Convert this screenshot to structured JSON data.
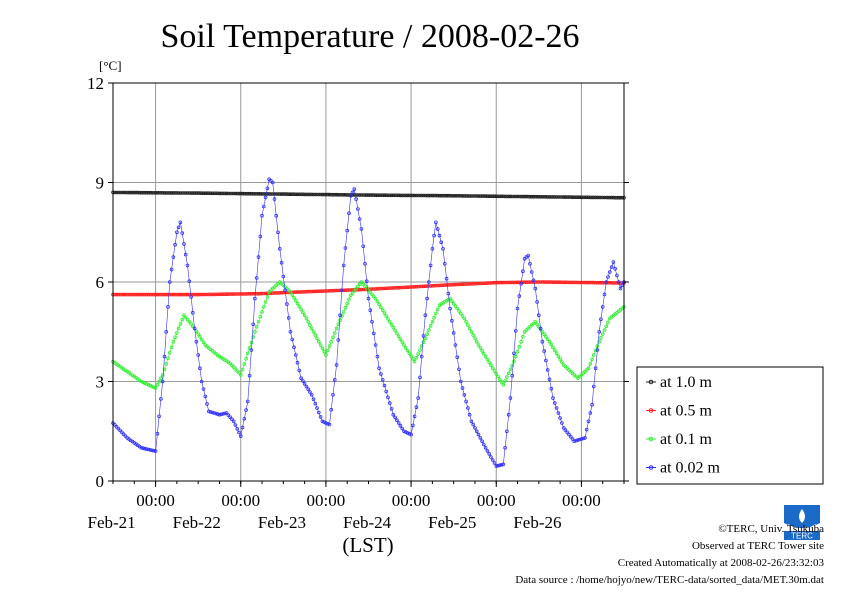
{
  "chart_data": {
    "type": "line",
    "title": "Soil Temperature / 2008-02-26",
    "y_unit": "[°C]",
    "xlabel": "(LST)",
    "ylim": [
      0,
      12
    ],
    "y_ticks": [
      "0",
      "3",
      "6",
      "9",
      "12"
    ],
    "xlim": [
      "2008-02-20T12:00",
      "2008-02-26T12:00"
    ],
    "x_ticks": [
      {
        "x": "2008-02-21T00:00",
        "time": "00:00",
        "date": "Feb-21"
      },
      {
        "x": "2008-02-22T00:00",
        "time": "00:00",
        "date": "Feb-22"
      },
      {
        "x": "2008-02-23T00:00",
        "time": "00:00",
        "date": "Feb-23"
      },
      {
        "x": "2008-02-24T00:00",
        "time": "00:00",
        "date": "Feb-24"
      },
      {
        "x": "2008-02-25T00:00",
        "time": "00:00",
        "date": "Feb-25"
      },
      {
        "x": "2008-02-26T00:00",
        "time": "00:00",
        "date": "Feb-26"
      }
    ],
    "grid": true,
    "legend_position": "right",
    "series": [
      {
        "name": "at 1.0 m",
        "color": "#202020",
        "points": [
          [
            "2008-02-20T12:00",
            8.7
          ],
          [
            "2008-02-21T12:00",
            8.68
          ],
          [
            "2008-02-22T12:00",
            8.65
          ],
          [
            "2008-02-23T12:00",
            8.62
          ],
          [
            "2008-02-24T12:00",
            8.6
          ],
          [
            "2008-02-25T12:00",
            8.57
          ],
          [
            "2008-02-26T12:00",
            8.54
          ]
        ]
      },
      {
        "name": "at 0.5 m",
        "color": "#ff2020",
        "points": [
          [
            "2008-02-20T12:00",
            5.62
          ],
          [
            "2008-02-21T12:00",
            5.62
          ],
          [
            "2008-02-22T06:00",
            5.65
          ],
          [
            "2008-02-22T12:00",
            5.68
          ],
          [
            "2008-02-23T12:00",
            5.78
          ],
          [
            "2008-02-24T12:00",
            5.92
          ],
          [
            "2008-02-25T00:00",
            5.98
          ],
          [
            "2008-02-25T12:00",
            6.0
          ],
          [
            "2008-02-26T12:00",
            5.97
          ]
        ]
      },
      {
        "name": "at 0.1 m",
        "color": "#30ee30",
        "points": [
          [
            "2008-02-20T12:00",
            3.6
          ],
          [
            "2008-02-20T16:00",
            3.3
          ],
          [
            "2008-02-20T20:00",
            3.0
          ],
          [
            "2008-02-21T00:00",
            2.8
          ],
          [
            "2008-02-21T02:00",
            3.2
          ],
          [
            "2008-02-21T05:00",
            4.2
          ],
          [
            "2008-02-21T08:00",
            5.0
          ],
          [
            "2008-02-21T11:00",
            4.6
          ],
          [
            "2008-02-21T14:00",
            4.1
          ],
          [
            "2008-02-21T18:00",
            3.75
          ],
          [
            "2008-02-21T21:00",
            3.55
          ],
          [
            "2008-02-22T00:00",
            3.2
          ],
          [
            "2008-02-22T04:00",
            4.5
          ],
          [
            "2008-02-22T08:00",
            5.7
          ],
          [
            "2008-02-22T11:00",
            6.0
          ],
          [
            "2008-02-22T14:00",
            5.7
          ],
          [
            "2008-02-22T18:00",
            5.0
          ],
          [
            "2008-02-22T21:00",
            4.4
          ],
          [
            "2008-02-23T00:00",
            3.8
          ],
          [
            "2008-02-23T03:00",
            4.6
          ],
          [
            "2008-02-23T07:00",
            5.6
          ],
          [
            "2008-02-23T10:00",
            6.0
          ],
          [
            "2008-02-23T14:00",
            5.5
          ],
          [
            "2008-02-23T18:00",
            4.8
          ],
          [
            "2008-02-23T22:00",
            4.1
          ],
          [
            "2008-02-24T01:00",
            3.6
          ],
          [
            "2008-02-24T04:00",
            4.3
          ],
          [
            "2008-02-24T08:00",
            5.3
          ],
          [
            "2008-02-24T11:00",
            5.5
          ],
          [
            "2008-02-24T15:00",
            4.9
          ],
          [
            "2008-02-24T19:00",
            4.1
          ],
          [
            "2008-02-24T23:00",
            3.4
          ],
          [
            "2008-02-25T02:00",
            2.9
          ],
          [
            "2008-02-25T05:00",
            3.6
          ],
          [
            "2008-02-25T08:00",
            4.5
          ],
          [
            "2008-02-25T11:00",
            4.8
          ],
          [
            "2008-02-25T15:00",
            4.2
          ],
          [
            "2008-02-25T19:00",
            3.5
          ],
          [
            "2008-02-25T23:00",
            3.1
          ],
          [
            "2008-02-26T02:00",
            3.4
          ],
          [
            "2008-02-26T05:00",
            4.2
          ],
          [
            "2008-02-26T08:00",
            4.9
          ],
          [
            "2008-02-26T12:00",
            5.25
          ]
        ]
      },
      {
        "name": "at 0.02 m",
        "color": "#3030ff",
        "points": [
          [
            "2008-02-20T12:00",
            1.75
          ],
          [
            "2008-02-20T16:00",
            1.3
          ],
          [
            "2008-02-20T20:00",
            1.0
          ],
          [
            "2008-02-21T00:00",
            0.9
          ],
          [
            "2008-02-21T02:00",
            3.0
          ],
          [
            "2008-02-21T04:00",
            6.0
          ],
          [
            "2008-02-21T06:00",
            7.5
          ],
          [
            "2008-02-21T07:00",
            7.8
          ],
          [
            "2008-02-21T09:00",
            6.5
          ],
          [
            "2008-02-21T11:00",
            4.6
          ],
          [
            "2008-02-21T13:00",
            3.0
          ],
          [
            "2008-02-21T15:00",
            2.1
          ],
          [
            "2008-02-21T18:00",
            2.0
          ],
          [
            "2008-02-21T20:00",
            2.05
          ],
          [
            "2008-02-21T22:00",
            1.8
          ],
          [
            "2008-02-22T00:00",
            1.35
          ],
          [
            "2008-02-22T02:00",
            2.4
          ],
          [
            "2008-02-22T04:00",
            5.5
          ],
          [
            "2008-02-22T06:00",
            8.0
          ],
          [
            "2008-02-22T08:00",
            9.1
          ],
          [
            "2008-02-22T09:00",
            9.0
          ],
          [
            "2008-02-22T11:00",
            7.0
          ],
          [
            "2008-02-22T14:00",
            4.5
          ],
          [
            "2008-02-22T17:00",
            3.1
          ],
          [
            "2008-02-22T20:00",
            2.6
          ],
          [
            "2008-02-22T23:00",
            1.8
          ],
          [
            "2008-02-23T01:00",
            1.7
          ],
          [
            "2008-02-23T03:00",
            3.5
          ],
          [
            "2008-02-23T05:00",
            6.5
          ],
          [
            "2008-02-23T07:00",
            8.6
          ],
          [
            "2008-02-23T08:00",
            8.8
          ],
          [
            "2008-02-23T10:00",
            7.6
          ],
          [
            "2008-02-23T12:00",
            5.5
          ],
          [
            "2008-02-23T15:00",
            3.4
          ],
          [
            "2008-02-23T19:00",
            2.0
          ],
          [
            "2008-02-23T22:00",
            1.5
          ],
          [
            "2008-02-24T00:00",
            1.4
          ],
          [
            "2008-02-24T02:00",
            2.5
          ],
          [
            "2008-02-24T04:00",
            5.0
          ],
          [
            "2008-02-24T06:00",
            7.0
          ],
          [
            "2008-02-24T07:00",
            7.8
          ],
          [
            "2008-02-24T09:00",
            7.0
          ],
          [
            "2008-02-24T11:00",
            5.2
          ],
          [
            "2008-02-24T14:00",
            3.0
          ],
          [
            "2008-02-24T17:00",
            1.8
          ],
          [
            "2008-02-24T21:00",
            1.0
          ],
          [
            "2008-02-25T00:00",
            0.45
          ],
          [
            "2008-02-25T02:00",
            0.5
          ],
          [
            "2008-02-25T04:00",
            2.5
          ],
          [
            "2008-02-25T06:00",
            5.2
          ],
          [
            "2008-02-25T08:00",
            6.7
          ],
          [
            "2008-02-25T09:00",
            6.8
          ],
          [
            "2008-02-25T11:00",
            5.8
          ],
          [
            "2008-02-25T13:00",
            4.2
          ],
          [
            "2008-02-25T16:00",
            2.5
          ],
          [
            "2008-02-25T19:00",
            1.6
          ],
          [
            "2008-02-25T22:00",
            1.2
          ],
          [
            "2008-02-26T01:00",
            1.3
          ],
          [
            "2008-02-26T03:00",
            2.3
          ],
          [
            "2008-02-26T05:00",
            4.5
          ],
          [
            "2008-02-26T07:00",
            6.0
          ],
          [
            "2008-02-26T09:00",
            6.6
          ],
          [
            "2008-02-26T11:00",
            5.8
          ],
          [
            "2008-02-26T12:00",
            6.0
          ]
        ]
      }
    ]
  },
  "footer": {
    "copyright": "©TERC, Univ. Tsukuba",
    "observed": "Observed at TERC Tower site",
    "created": "Created Automatically at 2008-02-26/23:32:03",
    "source": "Data source : /home/hojyo/new/TERC-data/sorted_data/MET.30m.dat"
  },
  "logo": {
    "text": "TERC",
    "color": "#1a6ac8"
  }
}
